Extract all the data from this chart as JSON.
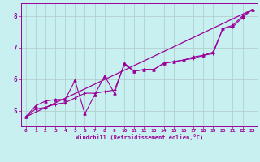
{
  "xlabel": "Windchill (Refroidissement éolien,°C)",
  "bg_color": "#c8f0f0",
  "line_color": "#990099",
  "grid_color": "#b0c8c8",
  "xlim": [
    -0.5,
    23.5
  ],
  "ylim": [
    4.5,
    8.4
  ],
  "yticks": [
    5,
    6,
    7,
    8
  ],
  "xticks": [
    0,
    1,
    2,
    3,
    4,
    5,
    6,
    7,
    8,
    9,
    10,
    11,
    12,
    13,
    14,
    15,
    16,
    17,
    18,
    19,
    20,
    21,
    22,
    23
  ],
  "series_scatter_x": [
    0,
    1,
    2,
    3,
    4,
    5,
    6,
    7,
    8,
    9,
    10,
    11,
    12,
    13,
    14,
    15,
    16,
    17,
    18,
    19,
    20,
    21,
    22,
    23
  ],
  "series_scatter_y": [
    4.8,
    5.15,
    5.3,
    5.35,
    5.35,
    5.95,
    4.9,
    5.5,
    6.1,
    5.55,
    6.5,
    6.25,
    6.3,
    6.3,
    6.5,
    6.55,
    6.6,
    6.7,
    6.75,
    6.85,
    7.6,
    7.7,
    8.0,
    8.2
  ],
  "series_line1_x": [
    0,
    1,
    2,
    3,
    4,
    5,
    6,
    7,
    8,
    9,
    10,
    11,
    12,
    13,
    14,
    15,
    16,
    17,
    18,
    19,
    20,
    21,
    22,
    23
  ],
  "series_line1_y": [
    4.8,
    5.05,
    5.1,
    5.2,
    5.25,
    5.4,
    5.55,
    5.55,
    5.6,
    5.65,
    6.45,
    6.25,
    6.3,
    6.3,
    6.5,
    6.55,
    6.6,
    6.65,
    6.75,
    6.8,
    7.6,
    7.65,
    7.95,
    8.2
  ],
  "series_trend_x": [
    0,
    23
  ],
  "series_trend_y": [
    4.8,
    8.2
  ]
}
